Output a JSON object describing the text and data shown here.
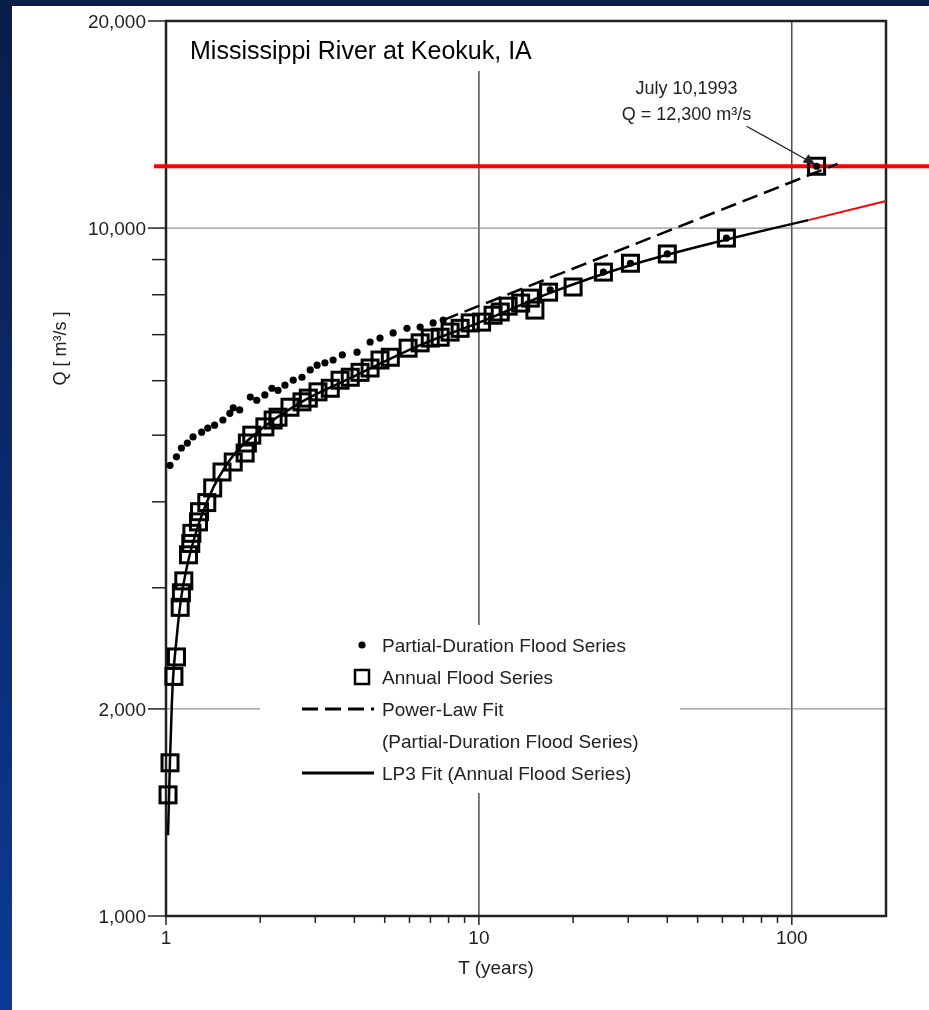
{
  "chart_data": {
    "type": "scatter",
    "title": "Mississippi River at Keokuk, IA",
    "xlabel": "T (years)",
    "ylabel": "Q [ m³/s ]",
    "log": "xy",
    "grid": true,
    "legend": "bottom",
    "xlim": [
      1,
      200
    ],
    "ylim": [
      1000,
      20000
    ],
    "xticks": [
      1,
      {
        "value": 2,
        "label": null
      },
      {
        "value": 3,
        "label": null
      },
      {
        "value": 4,
        "label": null
      },
      {
        "value": 5,
        "label": null
      },
      {
        "value": 6,
        "label": null
      },
      {
        "value": 7,
        "label": null
      },
      {
        "value": 8,
        "label": null
      },
      {
        "value": 9,
        "label": null
      },
      10,
      {
        "value": 20,
        "label": null
      },
      {
        "value": 30,
        "label": null
      },
      {
        "value": 40,
        "label": null
      },
      {
        "value": 50,
        "label": null
      },
      {
        "value": 60,
        "label": null
      },
      {
        "value": 70,
        "label": null
      },
      {
        "value": 80,
        "label": null
      },
      {
        "value": 90,
        "label": null
      },
      100
    ],
    "yticks": [
      {
        "value": 1000,
        "label": "1,000"
      },
      {
        "value": 2000,
        "label": "2,000"
      },
      {
        "value": 3000,
        "label": null
      },
      {
        "value": 4000,
        "label": null
      },
      {
        "value": 5000,
        "label": null
      },
      {
        "value": 6000,
        "label": null
      },
      {
        "value": 7000,
        "label": null
      },
      {
        "value": 8000,
        "label": null
      },
      {
        "value": 9000,
        "label": null
      },
      {
        "value": 10000,
        "label": "10,000"
      },
      {
        "value": 20000,
        "label": "20,000"
      }
    ],
    "ref_lines": [
      {
        "axis": "y",
        "value": 12300,
        "color": "#ff0000"
      }
    ],
    "annotations": [
      {
        "text": "July 10,1993\nQ = 12,300 m³/s",
        "x": 120,
        "y": 12300
      }
    ],
    "series": [
      {
        "name": "Partial-Duration Flood Series",
        "marker": "circle",
        "color": "#000000",
        "x": [
          1.03,
          1.08,
          1.12,
          1.17,
          1.22,
          1.3,
          1.36,
          1.43,
          1.52,
          1.6,
          1.64,
          1.72,
          1.86,
          1.95,
          2.07,
          2.18,
          2.28,
          2.4,
          2.55,
          2.72,
          2.89,
          3.04,
          3.22,
          3.42,
          3.66,
          4.08,
          4.49,
          4.83,
          5.32,
          5.89,
          6.49,
          7.14,
          7.69,
          16.9,
          25.0,
          30.5,
          40.0,
          61.8,
          120
        ],
        "values": [
          4520,
          4650,
          4790,
          4870,
          4970,
          5050,
          5120,
          5170,
          5260,
          5380,
          5480,
          5440,
          5680,
          5620,
          5720,
          5850,
          5810,
          5910,
          6010,
          6070,
          6220,
          6320,
          6370,
          6430,
          6540,
          6600,
          6830,
          6920,
          7040,
          7150,
          7180,
          7280,
          7350,
          8130,
          8630,
          8890,
          9170,
          9670,
          12300
        ]
      },
      {
        "name": "Annual Flood Series",
        "marker": "square",
        "color": "#000000",
        "x": [
          1.015,
          1.03,
          1.06,
          1.08,
          1.11,
          1.12,
          1.14,
          1.18,
          1.2,
          1.21,
          1.27,
          1.28,
          1.35,
          1.41,
          1.51,
          1.64,
          1.79,
          1.82,
          1.88,
          2.07,
          2.2,
          2.28,
          2.49,
          2.72,
          2.85,
          3.06,
          3.35,
          3.6,
          3.88,
          4.17,
          4.49,
          4.83,
          5.21,
          5.94,
          6.49,
          6.99,
          7.52,
          8.09,
          8.71,
          9.38,
          10.2,
          11.1,
          11.7,
          12.4,
          13.6,
          14.6,
          15.1,
          16.7,
          20.0,
          25.0,
          30.5,
          40.0,
          61.8,
          120
        ],
        "values": [
          1500,
          1670,
          2230,
          2380,
          2810,
          2950,
          3070,
          3350,
          3480,
          3600,
          3740,
          3870,
          3990,
          4190,
          4420,
          4570,
          4710,
          4870,
          5000,
          5140,
          5260,
          5310,
          5490,
          5590,
          5660,
          5780,
          5850,
          6010,
          6070,
          6170,
          6260,
          6430,
          6490,
          6690,
          6810,
          6920,
          6940,
          7060,
          7150,
          7280,
          7300,
          7470,
          7550,
          7700,
          7780,
          7910,
          7600,
          8070,
          8210,
          8630,
          8890,
          9170,
          9670,
          12300
        ]
      },
      {
        "name": "Power-Law Fit\n(Partial-Duration Flood Series)",
        "type": "line",
        "line_style": "dashed",
        "marker": "none",
        "color": "#000000",
        "x": [
          7.69,
          140
        ],
        "values": [
          7350,
          12400
        ]
      },
      {
        "name": "LP3 Fit (Annual Flood Series)",
        "type": "line",
        "line_style": "solid",
        "marker": "none",
        "color": "#000000",
        "x": [
          1.015,
          1.03,
          1.045,
          1.08,
          1.11,
          1.16,
          1.24,
          1.38,
          1.6,
          2.0,
          2.68,
          3.88,
          6.49,
          10.1,
          16.9,
          30.5,
          61.8,
          113
        ],
        "values": [
          1310,
          1690,
          2060,
          2520,
          2830,
          3180,
          3580,
          4090,
          4600,
          5090,
          5570,
          6050,
          6760,
          7300,
          8050,
          8830,
          9620,
          10270
        ]
      },
      {
        "type": "line",
        "line_style": "solid",
        "marker": "none",
        "color": "#ff0000",
        "x": [
          113,
          200
        ],
        "values": [
          10270,
          10950
        ]
      }
    ]
  }
}
